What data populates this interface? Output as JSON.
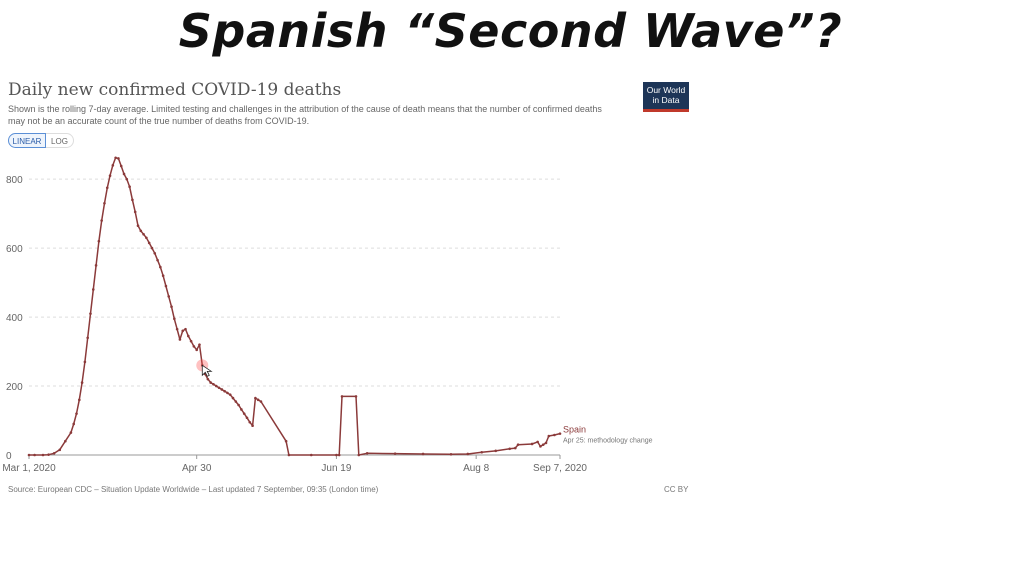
{
  "slide": {
    "title": "Spanish “Second Wave”?"
  },
  "chart_header": {
    "title": "Daily new confirmed COVID-19 deaths",
    "subtitle": "Shown is the rolling 7-day average. Limited testing and challenges in the attribution of the cause of death means that the number of confirmed deaths may not be an accurate count of the true number of deaths from COVID-19.",
    "logo_line1": "Our World",
    "logo_line2": "in Data"
  },
  "toggles": {
    "linear": "LINEAR",
    "log": "LOG"
  },
  "footer": {
    "source": "Source: European CDC – Situation Update Worldwide – Last updated 7 September, 09:35 (London time)",
    "license": "CC BY"
  },
  "colors": {
    "series": "#8b3a3a",
    "grid": "#dddddd",
    "highlight": "#ff4d4d"
  },
  "chart_data": {
    "type": "line",
    "title": "Daily new confirmed COVID-19 deaths",
    "x_axis": {
      "type": "date",
      "range": [
        "2020-03-01",
        "2020-09-07"
      ],
      "tick_labels": [
        "Mar 1, 2020",
        "Apr 30",
        "Jun 19",
        "Aug 8",
        "Sep 7, 2020"
      ]
    },
    "y_axis": {
      "range": [
        0,
        870
      ],
      "ticks": [
        0,
        200,
        400,
        600,
        800
      ],
      "tick_labels": [
        "0",
        "200",
        "400",
        "600",
        "800"
      ]
    },
    "grid": "horizontal dashed",
    "series": [
      {
        "name": "Spain",
        "annotation": "Apr 25: methodology change",
        "points": [
          [
            "2020-03-01",
            0
          ],
          [
            "2020-03-03",
            0
          ],
          [
            "2020-03-06",
            0
          ],
          [
            "2020-03-08",
            1
          ],
          [
            "2020-03-10",
            5
          ],
          [
            "2020-03-12",
            15
          ],
          [
            "2020-03-14",
            40
          ],
          [
            "2020-03-16",
            65
          ],
          [
            "2020-03-17",
            90
          ],
          [
            "2020-03-18",
            120
          ],
          [
            "2020-03-19",
            160
          ],
          [
            "2020-03-20",
            210
          ],
          [
            "2020-03-21",
            270
          ],
          [
            "2020-03-22",
            340
          ],
          [
            "2020-03-23",
            410
          ],
          [
            "2020-03-24",
            480
          ],
          [
            "2020-03-25",
            550
          ],
          [
            "2020-03-26",
            620
          ],
          [
            "2020-03-27",
            680
          ],
          [
            "2020-03-28",
            730
          ],
          [
            "2020-03-29",
            775
          ],
          [
            "2020-03-30",
            810
          ],
          [
            "2020-03-31",
            840
          ],
          [
            "2020-04-01",
            862
          ],
          [
            "2020-04-02",
            860
          ],
          [
            "2020-04-03",
            838
          ],
          [
            "2020-04-04",
            815
          ],
          [
            "2020-04-05",
            800
          ],
          [
            "2020-04-06",
            778
          ],
          [
            "2020-04-07",
            740
          ],
          [
            "2020-04-08",
            705
          ],
          [
            "2020-04-09",
            665
          ],
          [
            "2020-04-10",
            650
          ],
          [
            "2020-04-11",
            640
          ],
          [
            "2020-04-12",
            630
          ],
          [
            "2020-04-13",
            615
          ],
          [
            "2020-04-14",
            600
          ],
          [
            "2020-04-15",
            585
          ],
          [
            "2020-04-16",
            565
          ],
          [
            "2020-04-17",
            545
          ],
          [
            "2020-04-18",
            520
          ],
          [
            "2020-04-19",
            490
          ],
          [
            "2020-04-20",
            460
          ],
          [
            "2020-04-21",
            430
          ],
          [
            "2020-04-22",
            395
          ],
          [
            "2020-04-23",
            365
          ],
          [
            "2020-04-24",
            335
          ],
          [
            "2020-04-25",
            360
          ],
          [
            "2020-04-26",
            365
          ],
          [
            "2020-04-27",
            345
          ],
          [
            "2020-04-28",
            330
          ],
          [
            "2020-04-29",
            315
          ],
          [
            "2020-04-30",
            305
          ],
          [
            "2020-05-01",
            320
          ],
          [
            "2020-05-02",
            260
          ],
          [
            "2020-05-03",
            235
          ],
          [
            "2020-05-04",
            220
          ],
          [
            "2020-05-05",
            210
          ],
          [
            "2020-05-06",
            205
          ],
          [
            "2020-05-07",
            200
          ],
          [
            "2020-05-08",
            195
          ],
          [
            "2020-05-09",
            190
          ],
          [
            "2020-05-10",
            185
          ],
          [
            "2020-05-11",
            180
          ],
          [
            "2020-05-12",
            175
          ],
          [
            "2020-05-13",
            165
          ],
          [
            "2020-05-14",
            155
          ],
          [
            "2020-05-15",
            145
          ],
          [
            "2020-05-16",
            132
          ],
          [
            "2020-05-17",
            120
          ],
          [
            "2020-05-18",
            108
          ],
          [
            "2020-05-19",
            95
          ],
          [
            "2020-05-20",
            85
          ],
          [
            "2020-05-21",
            165
          ],
          [
            "2020-05-22",
            160
          ],
          [
            "2020-05-23",
            155
          ],
          [
            "2020-06-01",
            40
          ],
          [
            "2020-06-02",
            0
          ],
          [
            "2020-06-10",
            0
          ],
          [
            "2020-06-19",
            0
          ],
          [
            "2020-06-20",
            0
          ],
          [
            "2020-06-21",
            170
          ],
          [
            "2020-06-26",
            170
          ],
          [
            "2020-06-27",
            0
          ],
          [
            "2020-06-30",
            5
          ],
          [
            "2020-07-10",
            4
          ],
          [
            "2020-07-20",
            3
          ],
          [
            "2020-07-30",
            2
          ],
          [
            "2020-08-05",
            3
          ],
          [
            "2020-08-10",
            8
          ],
          [
            "2020-08-15",
            12
          ],
          [
            "2020-08-20",
            18
          ],
          [
            "2020-08-22",
            20
          ],
          [
            "2020-08-23",
            30
          ],
          [
            "2020-08-28",
            32
          ],
          [
            "2020-08-30",
            38
          ],
          [
            "2020-08-31",
            25
          ],
          [
            "2020-09-01",
            30
          ],
          [
            "2020-09-02",
            35
          ],
          [
            "2020-09-03",
            55
          ],
          [
            "2020-09-05",
            58
          ],
          [
            "2020-09-07",
            62
          ]
        ]
      }
    ]
  }
}
